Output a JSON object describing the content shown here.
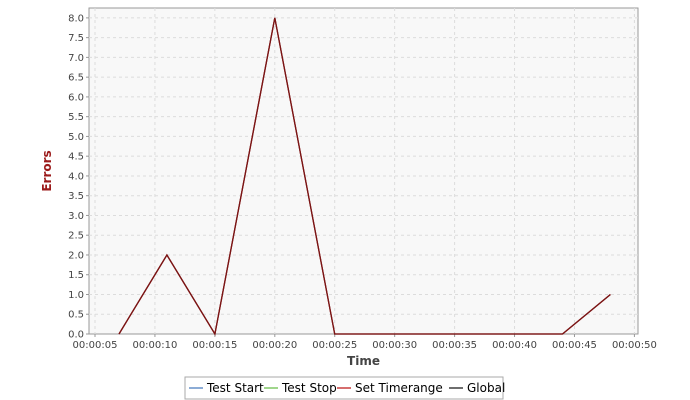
{
  "chart_data": {
    "type": "line",
    "title": "",
    "xlabel": "Time",
    "ylabel": "Errors",
    "xlim": [
      "00:00:05",
      "00:00:50"
    ],
    "ylim": [
      0,
      8.25
    ],
    "x_ticks": [
      "00:00:05",
      "00:00:10",
      "00:00:15",
      "00:00:20",
      "00:00:25",
      "00:00:30",
      "00:00:35",
      "00:00:40",
      "00:00:45",
      "00:00:50"
    ],
    "y_ticks": [
      "0.0",
      "0.5",
      "1.0",
      "1.5",
      "2.0",
      "2.5",
      "3.0",
      "3.5",
      "4.0",
      "4.5",
      "5.0",
      "5.5",
      "6.0",
      "6.5",
      "7.0",
      "7.5",
      "8.0"
    ],
    "grid": true,
    "legend_position": "bottom",
    "series": [
      {
        "name": "Test Start",
        "color": "#4f7fbf",
        "points": []
      },
      {
        "name": "Test Stop",
        "color": "#6cbf4f",
        "points": []
      },
      {
        "name": "Set Timerange",
        "color": "#c02020",
        "points": [
          {
            "x": "00:00:07",
            "y": 0
          },
          {
            "x": "00:00:11",
            "y": 2
          },
          {
            "x": "00:00:15",
            "y": 0
          },
          {
            "x": "00:00:20",
            "y": 8
          },
          {
            "x": "00:00:25",
            "y": 0
          },
          {
            "x": "00:00:44",
            "y": 0
          },
          {
            "x": "00:00:48",
            "y": 1
          }
        ]
      },
      {
        "name": "Global",
        "color": "#202020",
        "points": [
          {
            "x": "00:00:07",
            "y": 0
          },
          {
            "x": "00:00:11",
            "y": 2
          },
          {
            "x": "00:00:15",
            "y": 0
          },
          {
            "x": "00:00:20",
            "y": 8
          },
          {
            "x": "00:00:25",
            "y": 0
          },
          {
            "x": "00:00:44",
            "y": 0
          },
          {
            "x": "00:00:48",
            "y": 1
          }
        ]
      }
    ],
    "colors": {
      "ylabel": "#9b1a1a",
      "xlabel": "#444444",
      "plot_background": "#f8f8f8",
      "gridline": "#dcdcdc",
      "axis": "#999999"
    }
  }
}
